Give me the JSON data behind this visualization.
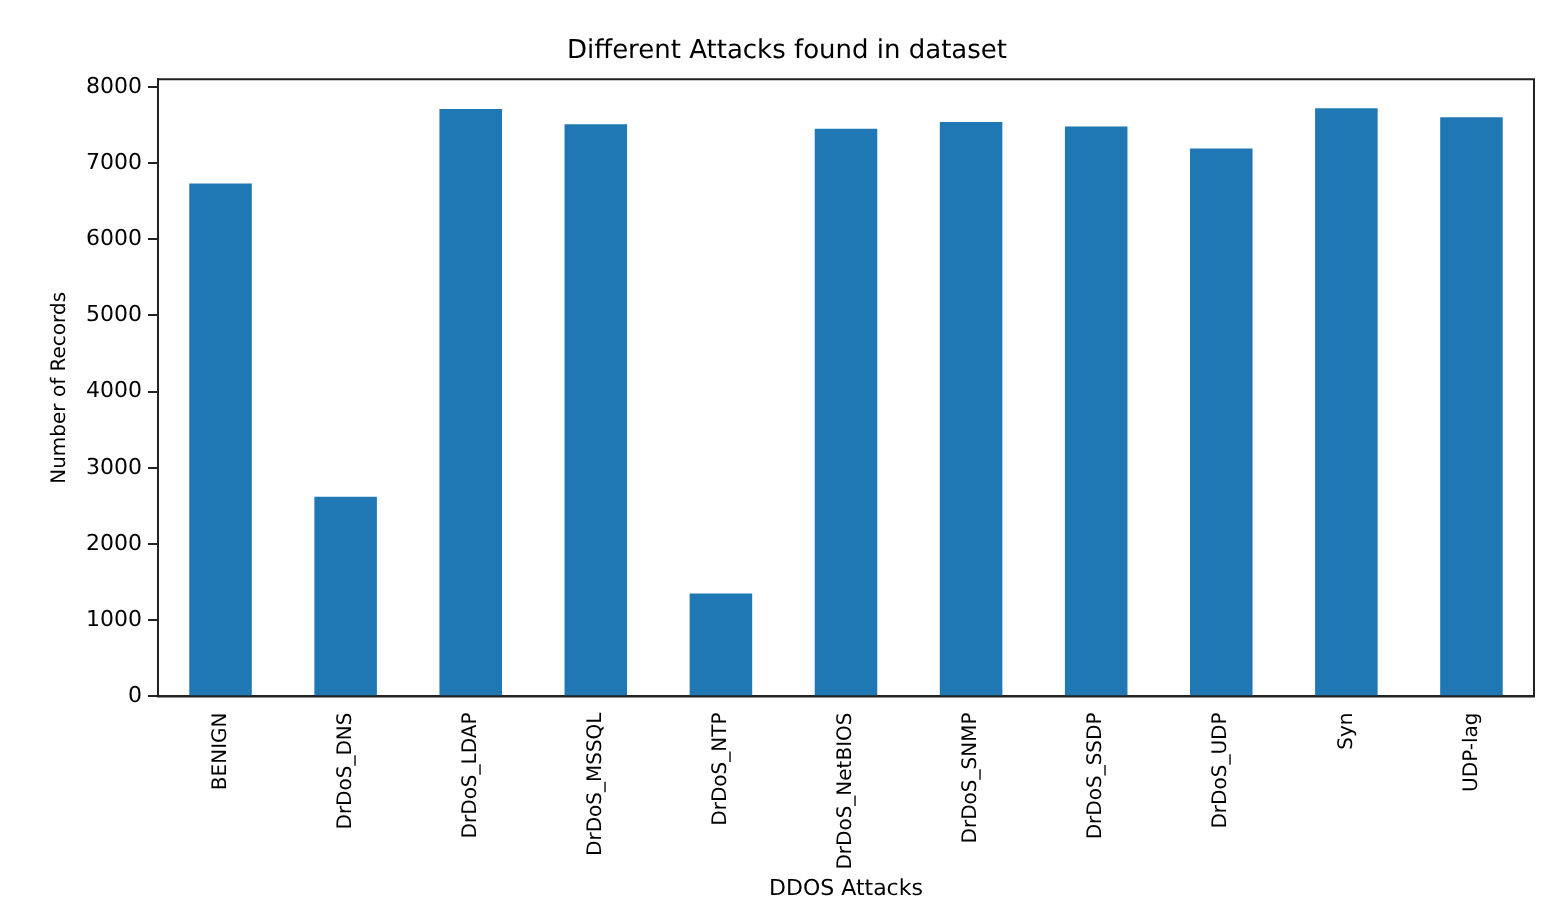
{
  "chart_data": {
    "type": "bar",
    "title": "Different Attacks found in dataset",
    "xlabel": "DDOS Attacks",
    "ylabel": "Number of Records",
    "categories": [
      "BENIGN",
      "DrDoS_DNS",
      "DrDoS_LDAP",
      "DrDoS_MSSQL",
      "DrDoS_NTP",
      "DrDoS_NetBIOS",
      "DrDoS_SNMP",
      "DrDoS_SSDP",
      "DrDoS_UDP",
      "Syn",
      "UDP-lag"
    ],
    "values": [
      6730,
      2620,
      7710,
      7510,
      1350,
      7450,
      7540,
      7480,
      7190,
      7720,
      7600
    ],
    "color": "#1f77b4",
    "ylim": [
      0,
      8100
    ],
    "yticks": [
      0,
      1000,
      2000,
      3000,
      4000,
      5000,
      6000,
      7000,
      8000
    ],
    "grid": false,
    "legend": false
  }
}
